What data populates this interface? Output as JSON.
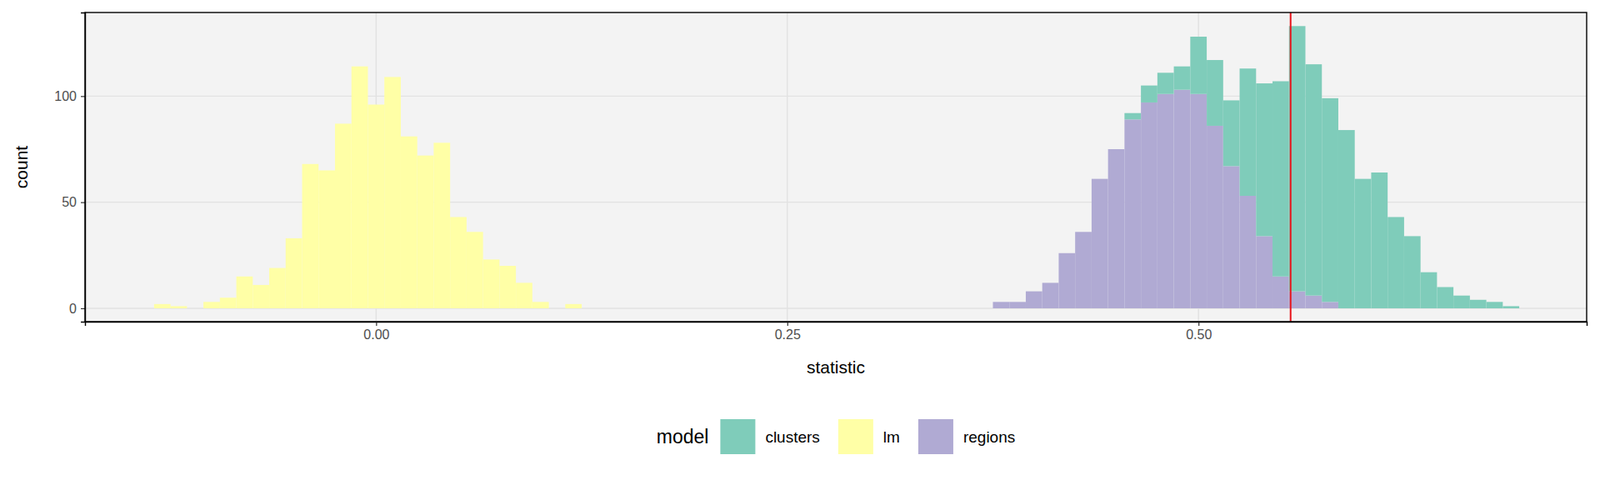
{
  "chart_data": {
    "type": "histogram",
    "xlabel": "statistic",
    "ylabel": "count",
    "legend_title": "model",
    "legend": "bottom",
    "grid": true,
    "stacked": true,
    "xlim": [
      -0.177,
      0.736
    ],
    "ylim": [
      -6.3,
      139.4
    ],
    "xticks": [
      {
        "value": 0,
        "label": "0.00"
      },
      {
        "value": 0.25,
        "label": "0.25"
      },
      {
        "value": 0.5,
        "label": "0.50"
      }
    ],
    "yticks": [
      0,
      50,
      100
    ],
    "bins": [
      -0.135,
      -0.125,
      -0.115,
      -0.105,
      -0.095,
      -0.085,
      -0.075,
      -0.065,
      -0.055,
      -0.045,
      -0.035,
      -0.025,
      -0.015,
      -0.005,
      0.005,
      0.015,
      0.025,
      0.035,
      0.045,
      0.055,
      0.065,
      0.075,
      0.085,
      0.095,
      0.105,
      0.115,
      0.125,
      0.135,
      0.145,
      0.155,
      0.165,
      0.175,
      0.185,
      0.195,
      0.205,
      0.215,
      0.225,
      0.235,
      0.245,
      0.255,
      0.265,
      0.275,
      0.285,
      0.295,
      0.305,
      0.315,
      0.325,
      0.335,
      0.345,
      0.355,
      0.365,
      0.375,
      0.385,
      0.395,
      0.405,
      0.415,
      0.425,
      0.435,
      0.445,
      0.455,
      0.465,
      0.475,
      0.485,
      0.495,
      0.505,
      0.515,
      0.525,
      0.535,
      0.545,
      0.555,
      0.565,
      0.575,
      0.585,
      0.595,
      0.605,
      0.615,
      0.625,
      0.635,
      0.645,
      0.655,
      0.665,
      0.675,
      0.685,
      0.695
    ],
    "series": [
      {
        "name": "clusters",
        "color": "#7fccba",
        "values": [
          0,
          0,
          0,
          0,
          0,
          0,
          0,
          0,
          0,
          0,
          0,
          0,
          0,
          0,
          0,
          0,
          0,
          0,
          0,
          0,
          0,
          0,
          0,
          0,
          0,
          0,
          0,
          0,
          0,
          0,
          0,
          0,
          0,
          0,
          0,
          0,
          0,
          0,
          0,
          0,
          0,
          0,
          0,
          0,
          0,
          0,
          0,
          0,
          0,
          0,
          0,
          0,
          0,
          0,
          0,
          0,
          0,
          0,
          0,
          3,
          8,
          10,
          11,
          27,
          31,
          31,
          60,
          72,
          92,
          125,
          109,
          96,
          84,
          61,
          64,
          43,
          34,
          17,
          10,
          6,
          4,
          3,
          1
        ]
      },
      {
        "name": "lm",
        "color": "#ffffa6",
        "values": [
          2,
          1,
          0,
          3,
          5,
          15,
          11,
          19,
          33,
          68,
          65,
          87,
          114,
          96,
          109,
          81,
          72,
          78,
          43,
          36,
          23,
          20,
          12,
          3,
          0,
          2,
          0,
          0,
          0,
          0,
          0,
          0,
          0,
          0,
          0,
          0,
          0,
          0,
          0,
          0,
          0,
          0,
          0,
          0,
          0,
          0,
          0,
          0,
          0,
          0,
          0,
          0,
          0,
          0,
          0,
          0,
          0,
          0,
          0,
          0,
          0,
          0,
          0,
          0,
          0,
          0,
          0,
          0,
          0,
          0,
          0,
          0,
          0,
          0,
          0,
          0,
          0,
          0,
          0,
          0,
          0,
          0,
          0
        ]
      },
      {
        "name": "regions",
        "color": "#b0aad3",
        "values": [
          0,
          0,
          0,
          0,
          0,
          0,
          0,
          0,
          0,
          0,
          0,
          0,
          0,
          0,
          0,
          0,
          0,
          0,
          0,
          0,
          0,
          0,
          0,
          0,
          0,
          0,
          0,
          0,
          0,
          0,
          0,
          0,
          0,
          0,
          0,
          0,
          0,
          0,
          0,
          0,
          0,
          0,
          0,
          0,
          0,
          0,
          0,
          0,
          0,
          0,
          0,
          3,
          3,
          8,
          12,
          26,
          36,
          61,
          75,
          89,
          97,
          101,
          103,
          101,
          86,
          67,
          53,
          34,
          15,
          8,
          6,
          3,
          0,
          0,
          0,
          0,
          0,
          0,
          0,
          0,
          0,
          0,
          0
        ]
      }
    ],
    "reference_line": {
      "x": 0.556,
      "color": "#e8141c"
    }
  }
}
